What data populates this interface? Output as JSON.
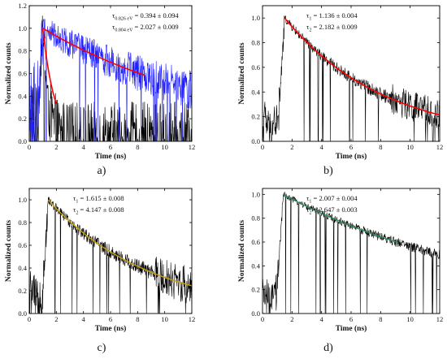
{
  "chart_data": [
    {
      "type": "line",
      "caption": "a)",
      "xlabel": "Time (ns)",
      "ylabel": "Normalized counts",
      "xlim": [
        0,
        12
      ],
      "ylim": [
        0,
        1.2
      ],
      "xticks": [
        "0",
        "2",
        "4",
        "6",
        "8",
        "10",
        "12"
      ],
      "yticks": [
        "0.0",
        "0.2",
        "0.4",
        "0.6",
        "0.8",
        "1.0",
        "1.2"
      ],
      "annotations": [
        {
          "symbol": "τ",
          "sub": "0.826 eV",
          "text": " = 0.394 ± 0.094"
        },
        {
          "symbol": "τ",
          "sub": "0.804 eV",
          "text": " = 2.027 ± 0.009"
        }
      ],
      "series": [
        {
          "color": "#000000",
          "rise": 1.0,
          "tau": 0.394,
          "noise": 0.16,
          "end": 12
        },
        {
          "color": "#1f1fff",
          "rise": 1.0,
          "tau": 14.0,
          "noise": 0.24,
          "end": 12
        },
        {
          "color": "#ff0000",
          "fit": true,
          "range": [
            1.0,
            8.5
          ],
          "tau": 14.0,
          "width": 1.6
        },
        {
          "color": "#ff0000",
          "fit": true,
          "range": [
            1.0,
            2.0
          ],
          "tau": 0.9,
          "width": 1.6
        }
      ],
      "grid": false
    },
    {
      "type": "line",
      "caption": "b)",
      "xlabel": "Time (ns)",
      "ylabel": "Normalized counts",
      "xlim": [
        0,
        12
      ],
      "ylim": [
        0,
        1.1
      ],
      "xticks": [
        "0",
        "2",
        "4",
        "6",
        "8",
        "10",
        "12"
      ],
      "yticks": [
        "0.0",
        "0.2",
        "0.4",
        "0.6",
        "0.8",
        "1.0"
      ],
      "annotations": [
        {
          "symbol": "τ",
          "sub": "1",
          "text": " = 1.136 ± 0.004"
        },
        {
          "symbol": "τ",
          "sub": "2",
          "text": " = 2.182 ± 0.009"
        }
      ],
      "series": [
        {
          "color": "#000000",
          "rise": 1.5,
          "tau": 6.8,
          "noise": 0.07,
          "end": 12
        },
        {
          "color": "#ff0000",
          "fit": true,
          "range": [
            1.5,
            12
          ],
          "tau": 6.8,
          "width": 1.6
        }
      ],
      "grid": false
    },
    {
      "type": "line",
      "caption": "c)",
      "xlabel": "Time (ns)",
      "ylabel": "Normalized counts",
      "xlim": [
        0,
        12
      ],
      "ylim": [
        0,
        1.1
      ],
      "xticks": [
        "0",
        "2",
        "4",
        "6",
        "8",
        "10",
        "12"
      ],
      "yticks": [
        "0.0",
        "0.2",
        "0.4",
        "0.6",
        "0.8",
        "1.0"
      ],
      "annotations": [
        {
          "symbol": "τ",
          "sub": "1",
          "text": " = 1.615 ± 0.008"
        },
        {
          "symbol": "τ",
          "sub": "2",
          "text": " = 4.147 ± 0.008"
        }
      ],
      "series": [
        {
          "color": "#000000",
          "rise": 1.4,
          "tau": 7.5,
          "noise": 0.09,
          "end": 12
        },
        {
          "color": "#c8a000",
          "fit": true,
          "range": [
            1.4,
            12
          ],
          "tau": 7.5,
          "width": 1.4
        }
      ],
      "grid": false
    },
    {
      "type": "line",
      "caption": "d)",
      "xlabel": "Time (ns)",
      "ylabel": "Normalized counts",
      "xlim": [
        0,
        12
      ],
      "ylim": [
        0,
        1.05
      ],
      "xticks": [
        "0",
        "2",
        "4",
        "6",
        "8",
        "10",
        "12"
      ],
      "yticks": [
        "0.0",
        "0.2",
        "0.4",
        "0.6",
        "0.8",
        "1.0"
      ],
      "annotations": [
        {
          "symbol": "τ",
          "sub": "1",
          "text": " = 2.007 ± 0.004"
        },
        {
          "symbol": "τ",
          "sub": "2",
          "text": " = 2.647 ± 0.003"
        }
      ],
      "series": [
        {
          "color": "#000000",
          "rise": 1.4,
          "tau": 15.0,
          "noise": 0.06,
          "end": 12
        },
        {
          "color": "#2e8b57",
          "fit": true,
          "range": [
            1.4,
            9.2
          ],
          "tau": 15.0,
          "width": 1.4
        }
      ],
      "grid": false
    }
  ]
}
